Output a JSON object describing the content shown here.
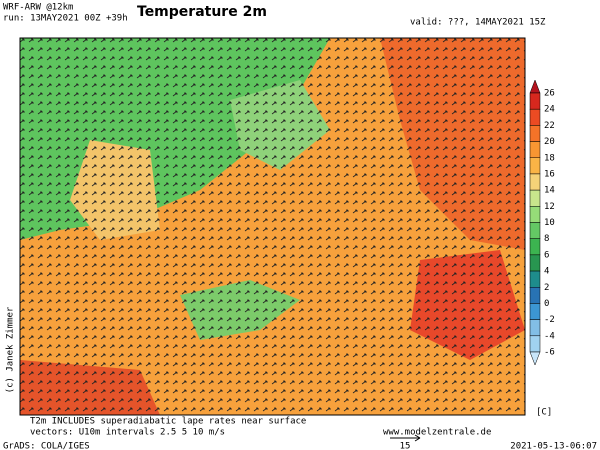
{
  "header": {
    "model": "WRF-ARW @12km",
    "run": "run: 13MAY2021 00Z +39h",
    "title": "Temperature 2m",
    "valid": "valid: ???, 14MAY2021 15Z"
  },
  "colorbar": {
    "levels": [
      26,
      24,
      22,
      20,
      18,
      16,
      14,
      12,
      10,
      8,
      6,
      4,
      2,
      0,
      -2,
      -4,
      -6
    ],
    "colors": [
      "#b4141e",
      "#d7281e",
      "#eb4b23",
      "#f57328",
      "#f89632",
      "#fab446",
      "#f5d278",
      "#c8e68c",
      "#96dc78",
      "#64c864",
      "#3cb450",
      "#289650",
      "#1e8c8c",
      "#2873b4",
      "#3c96d2",
      "#82bee6",
      "#a0d2f0",
      "#c8e6fa"
    ],
    "unit": "[C]"
  },
  "credit": "(c) Janek Zimmer",
  "footer": {
    "note": "T2m INCLUDES superadiabatic lape rates near surface",
    "vectors": "vectors: U10m intervals 2.5 5 10 m/s",
    "site": "www.modelzentrale.de",
    "ref_vector": "15",
    "grads": "GrADS: COLA/IGES",
    "timestamp": "2021-05-13-06:07"
  }
}
